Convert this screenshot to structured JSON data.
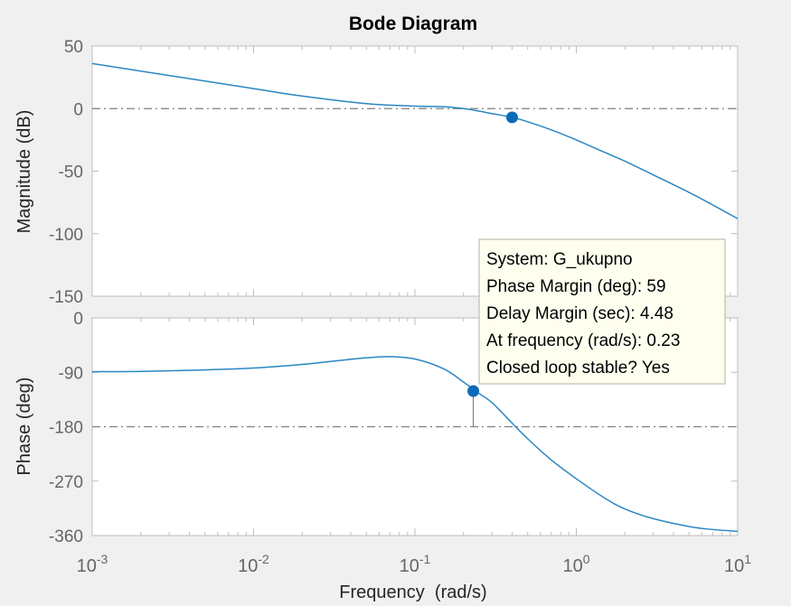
{
  "chart_data": {
    "type": "line",
    "title": "Bode Diagram",
    "xlabel": "Frequency  (rad/s)",
    "x_scale": "log",
    "xlim": [
      0.001,
      10
    ],
    "x_ticks": [
      {
        "value": 0.001,
        "base": "10",
        "exp": "-3"
      },
      {
        "value": 0.01,
        "base": "10",
        "exp": "-2"
      },
      {
        "value": 0.1,
        "base": "10",
        "exp": "-1"
      },
      {
        "value": 1,
        "base": "10",
        "exp": "0"
      },
      {
        "value": 10,
        "base": "10",
        "exp": "1"
      }
    ],
    "grid": false,
    "colors": {
      "line": "#2b86c4",
      "marker": "#0c6ab8",
      "reference": "#7f7f7f",
      "axes": "#bdbdbd",
      "tick_label": "#666666",
      "axis_label": "#262626",
      "datatip_bg": "#fffff0",
      "datatip_border": "#b0b0a0"
    },
    "magnitude": {
      "ylabel": "Magnitude (dB)",
      "ylim": [
        -150,
        50
      ],
      "y_ticks": [
        "50",
        "0",
        "-50",
        "-100",
        "-150"
      ],
      "y_tick_values": [
        50,
        0,
        -50,
        -100,
        -150
      ],
      "reference_line": 0,
      "x": [
        0.001,
        0.002,
        0.005,
        0.01,
        0.02,
        0.05,
        0.1,
        0.15,
        0.2,
        0.25,
        0.3,
        0.4,
        0.5,
        0.7,
        1,
        1.5,
        2,
        3,
        5,
        7,
        10
      ],
      "y": [
        36,
        30,
        22,
        16,
        10,
        4,
        2,
        1.5,
        0,
        -2,
        -4,
        -7,
        -10.5,
        -17,
        -25,
        -35,
        -42,
        -53,
        -67,
        -77,
        -88
      ],
      "marker": {
        "x": 0.4,
        "y": -7
      }
    },
    "phase": {
      "ylabel": "Phase (deg)",
      "ylim": [
        -360,
        0
      ],
      "y_ticks": [
        "0",
        "-90",
        "-180",
        "-270",
        "-360"
      ],
      "y_tick_values": [
        0,
        -90,
        -180,
        -270,
        -360
      ],
      "reference_line": -180,
      "x": [
        0.001,
        0.002,
        0.005,
        0.01,
        0.02,
        0.03,
        0.05,
        0.07,
        0.1,
        0.15,
        0.2,
        0.25,
        0.3,
        0.4,
        0.5,
        0.7,
        1,
        1.5,
        2,
        3,
        5,
        7,
        10
      ],
      "y": [
        -89,
        -88.5,
        -86,
        -83,
        -77,
        -72,
        -66,
        -64,
        -68,
        -84,
        -106,
        -125,
        -140,
        -174,
        -200,
        -235,
        -266,
        -298,
        -316,
        -332,
        -345,
        -350,
        -353
      ],
      "marker": {
        "x": 0.23,
        "y": -121
      }
    },
    "datatip": {
      "lines": [
        "System: G_ukupno",
        "Phase Margin (deg): 59",
        "Delay Margin (sec): 4.48",
        "At frequency (rad/s): 0.23",
        "Closed loop stable? Yes"
      ]
    }
  }
}
